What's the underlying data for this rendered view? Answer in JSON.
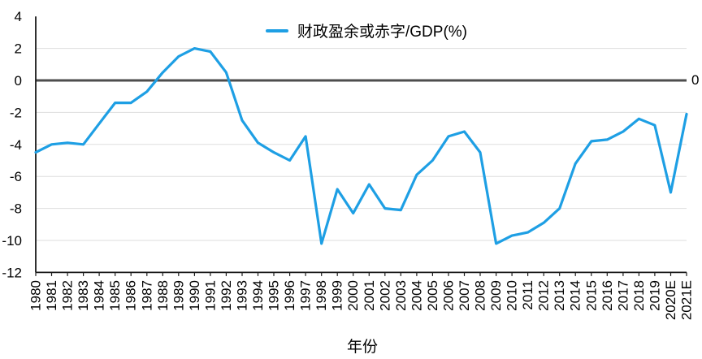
{
  "chart_data": {
    "type": "line",
    "categories": [
      "1980",
      "1981",
      "1982",
      "1983",
      "1984",
      "1985",
      "1986",
      "1987",
      "1988",
      "1989",
      "1990",
      "1991",
      "1992",
      "1993",
      "1994",
      "1995",
      "1996",
      "1997",
      "1998",
      "1999",
      "2000",
      "2001",
      "2002",
      "2003",
      "2004",
      "2005",
      "2006",
      "2007",
      "2008",
      "2009",
      "2010",
      "2011",
      "2012",
      "2013",
      "2014",
      "2015",
      "2016",
      "2017",
      "2018",
      "2019",
      "2020E",
      "2021E"
    ],
    "series": [
      {
        "name": "财政盈余或赤字/GDP(%)",
        "values": [
          -4.5,
          -4.0,
          -3.9,
          -4.0,
          -2.7,
          -1.4,
          -1.4,
          -0.7,
          0.5,
          1.5,
          2.0,
          1.8,
          0.5,
          -2.5,
          -3.9,
          -4.5,
          -5.0,
          -3.5,
          -10.2,
          -6.8,
          -8.3,
          -6.5,
          -8.0,
          -8.1,
          -5.9,
          -5.0,
          -3.5,
          -3.2,
          -4.5,
          -10.2,
          -9.7,
          -9.5,
          -8.9,
          -8.0,
          -5.2,
          -3.8,
          -3.7,
          -3.2,
          -2.4,
          -2.8,
          -7.0,
          -2.1
        ]
      }
    ],
    "xlabel": "年份",
    "ylabel": "",
    "ylim": [
      -12,
      4
    ],
    "yticks": [
      4,
      2,
      0,
      -2,
      -4,
      -6,
      -8,
      -10,
      -12
    ],
    "grid": "horizontal",
    "legend_position": "top-center",
    "zero_line": true,
    "right_zero_label": "0",
    "colors": {
      "line": "#1E9FE4",
      "zero_line": "#4D4D4D",
      "grid": "#DEDEDE",
      "axis": "#1A1A1A",
      "text": "#000000"
    }
  }
}
